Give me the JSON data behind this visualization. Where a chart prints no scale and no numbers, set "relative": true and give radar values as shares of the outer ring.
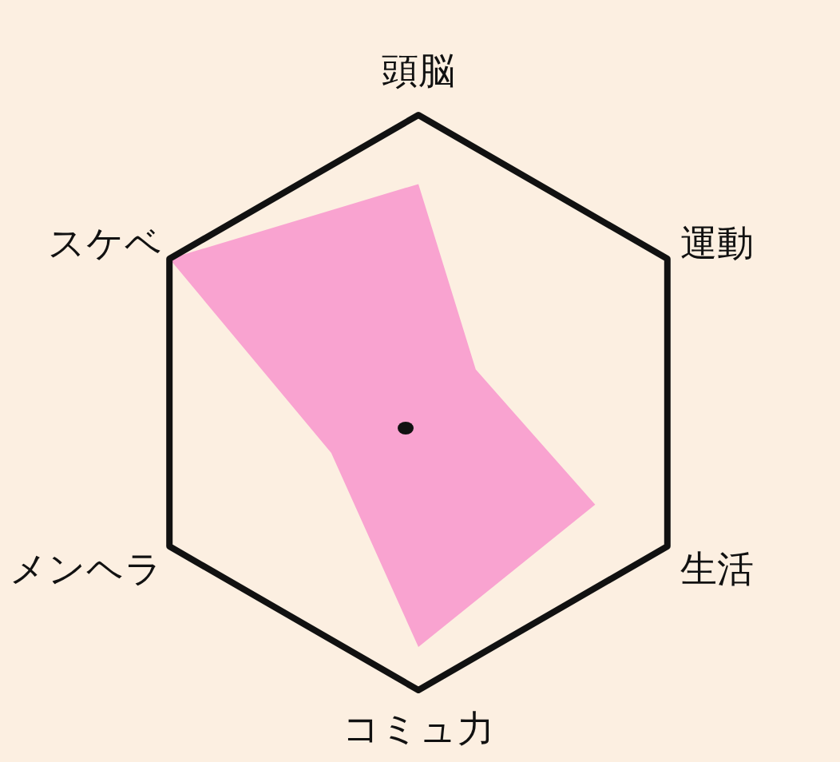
{
  "chart_data": {
    "type": "radar",
    "relative": true,
    "categories": [
      "頭脳",
      "運動",
      "生活",
      "コミュ力",
      "メンヘラ",
      "スケベ"
    ],
    "series": [
      {
        "color": "#f9a3d0",
        "values": [
          0.76,
          0.23,
          0.71,
          0.85,
          0.35,
          1.0
        ]
      }
    ]
  }
}
